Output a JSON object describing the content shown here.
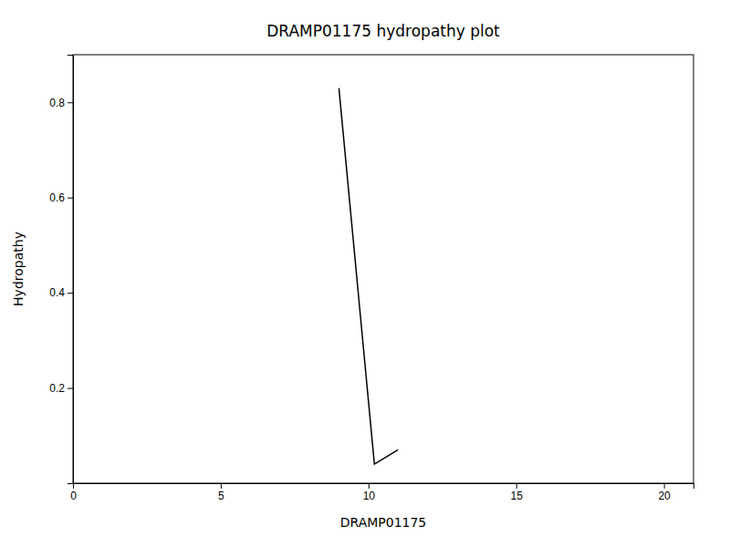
{
  "chart_data": {
    "type": "line",
    "title": "DRAMP01175 hydropathy plot",
    "xlabel": "DRAMP01175",
    "ylabel": "Hydropathy",
    "x": [
      9.0,
      10.2,
      11.0
    ],
    "values": [
      0.83,
      0.04,
      0.07
    ],
    "color": "#000000",
    "xlim": [
      0,
      21
    ],
    "ylim": [
      0,
      0.9
    ],
    "xticks": [
      0,
      5,
      10,
      15,
      20
    ],
    "yticks": [
      0.2,
      0.4,
      0.6,
      0.8
    ],
    "grid": false
  }
}
